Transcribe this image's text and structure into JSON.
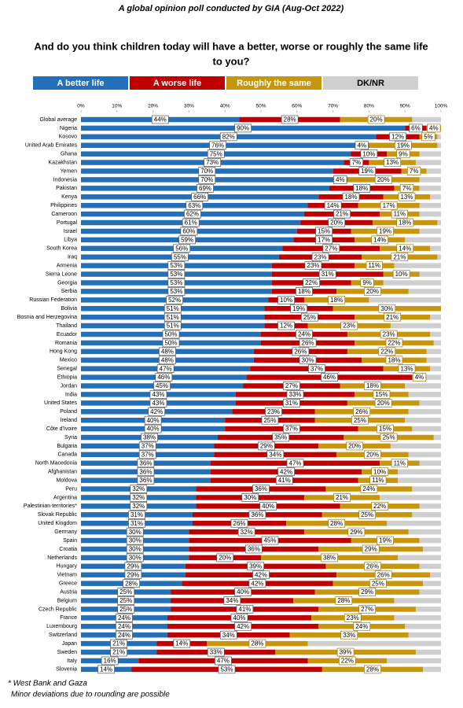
{
  "chart_data": {
    "type": "stacked-bar-horizontal",
    "title": "A global opinion poll conducted by GIA (Aug-Oct 2022)",
    "subtitle": [
      "And do you think children today will have a better, worse or roughly the same life",
      "to you?"
    ],
    "categories": [
      "Global average",
      "Nigeria",
      "Kosovo",
      "United Arab Emirates",
      "Ghana",
      "Kazakhstan",
      "Yemen",
      "Indonesia",
      "Pakistan",
      "Kenya",
      "Philippines",
      "Cameroon",
      "Portugal",
      "Israel",
      "Libya",
      "South Korea",
      "Iraq",
      "Armenia",
      "Sierra Leone",
      "Georgia",
      "Serbia",
      "Russian Federation",
      "Bolivia",
      "Bosnia and Herzegovina",
      "Thailand",
      "Ecuador",
      "Romania",
      "Hong Kong",
      "Mexico",
      "Senegal",
      "Ethiopia",
      "Jordan",
      "India",
      "United States",
      "Poland",
      "Ireland",
      "Côte d'Ivoire",
      "Syria",
      "Bulgaria",
      "Canada",
      "North Macedonia",
      "Afghanistan",
      "Moldova",
      "Peru",
      "Argentina",
      "Palestinian territories*",
      "Slovak Republic",
      "United Kingdom",
      "Germany",
      "Spain",
      "Croatia",
      "Netherlands",
      "Hungary",
      "Vietnam",
      "Greece",
      "Austria",
      "Belgium",
      "Czech Republic",
      "France",
      "Luxembourg",
      "Switzerland",
      "Japan",
      "Sweden",
      "Italy",
      "Slovenia"
    ],
    "series": [
      {
        "name": "A better life",
        "color": "#2470b8",
        "values": [
          44,
          90,
          82,
          76,
          75,
          73,
          70,
          70,
          69,
          66,
          63,
          62,
          61,
          60,
          59,
          56,
          55,
          53,
          53,
          53,
          53,
          52,
          51,
          51,
          51,
          50,
          50,
          48,
          48,
          47,
          46,
          45,
          43,
          43,
          42,
          40,
          40,
          38,
          37,
          37,
          36,
          36,
          36,
          32,
          32,
          32,
          31,
          31,
          30,
          30,
          30,
          30,
          29,
          29,
          28,
          25,
          25,
          25,
          24,
          24,
          24,
          21,
          21,
          16,
          14
        ],
        "value_labels": [
          "44%",
          "90%",
          "82%",
          "76%",
          "75%",
          "73%",
          "70%",
          "70%",
          "69%",
          "66%",
          "63%",
          "62%",
          "61%",
          "60%",
          "59%",
          "56%",
          "55%",
          "53%",
          "53%",
          "53%",
          "53%",
          "52%",
          "51%",
          "51%",
          "51%",
          "50%",
          "50%",
          "48%",
          "48%",
          "47%",
          "46%",
          "45%",
          "43%",
          "43%",
          "42%",
          "40%",
          "40%",
          "38%",
          "37%",
          "37%",
          "36%",
          "36%",
          "36%",
          "32%",
          "32%",
          "32%",
          "31%",
          "31%",
          "30%",
          "30%",
          "30%",
          "30%",
          "29%",
          "29%",
          "28%",
          "25%",
          "25%",
          "25%",
          "24%",
          "24%",
          "24%",
          "21%",
          "21%",
          "16%",
          "14%"
        ]
      },
      {
        "name": "A worse life",
        "color": "#c00000",
        "values": [
          28,
          6,
          12,
          4,
          10,
          7,
          19,
          4,
          18,
          18,
          14,
          21,
          20,
          15,
          17,
          27,
          23,
          23,
          31,
          22,
          18,
          10,
          19,
          25,
          12,
          24,
          26,
          26,
          30,
          37,
          46,
          27,
          33,
          31,
          23,
          25,
          37,
          35,
          29,
          34,
          47,
          42,
          41,
          36,
          30,
          40,
          36,
          26,
          32,
          45,
          36,
          20,
          39,
          42,
          42,
          40,
          34,
          41,
          40,
          42,
          34,
          14,
          33,
          47,
          53
        ],
        "value_labels": [
          "28%",
          "6%",
          "12%",
          "4%",
          "10%",
          "7%",
          "19%",
          "4%",
          "18%",
          "18%",
          "14%",
          "21%",
          "20%",
          "15%",
          "17%",
          "27%",
          "23%",
          "23%",
          "31%",
          "22%",
          "18%",
          "10%",
          "19%",
          "25%",
          "12%",
          "24%",
          "26%",
          "26%",
          "30%",
          "37%",
          "46%",
          "27%",
          "33%",
          "31%",
          "23%",
          "25%",
          "37%",
          "35%",
          "29%",
          "34%",
          "47%",
          "42%",
          "41%",
          "36%",
          "30%",
          "40%",
          "36%",
          "26%",
          "32%",
          "45%",
          "36%",
          "20%",
          "39%",
          "42%",
          "42%",
          "40%",
          "34%",
          "41%",
          "40%",
          "42%",
          "34%",
          "14%",
          "33%",
          "47%",
          "53%"
        ]
      },
      {
        "name": "Roughly the same",
        "color": "#c8960c",
        "values": [
          20,
          4,
          5,
          19,
          9,
          13,
          7,
          20,
          7,
          13,
          17,
          11,
          18,
          19,
          14,
          14,
          21,
          11,
          10,
          9,
          20,
          18,
          30,
          21,
          23,
          23,
          22,
          22,
          18,
          13,
          4,
          18,
          15,
          20,
          26,
          25,
          15,
          25,
          20,
          20,
          11,
          10,
          11,
          24,
          21,
          22,
          25,
          28,
          29,
          19,
          29,
          38,
          26,
          26,
          25,
          29,
          28,
          27,
          23,
          24,
          33,
          28,
          39,
          22,
          28
        ],
        "value_labels": [
          "20%",
          "4%",
          "5%",
          "19%",
          "9%",
          "13%",
          "7%",
          "20%",
          "7%",
          "13%",
          "17%",
          "11%",
          "18%",
          "19%",
          "14%",
          "14%",
          "21%",
          "11%",
          "10%",
          "9%",
          "20%",
          "18%",
          "30%",
          "21%",
          "23%",
          "23%",
          "22%",
          "22%",
          "18%",
          "13%",
          "4%",
          "18%",
          "15%",
          "20%",
          "26%",
          "25%",
          "15%",
          "25%",
          "20%",
          "20%",
          "11%",
          "10%",
          "11%",
          "24%",
          "21%",
          "22%",
          "25%",
          "28%",
          "29%",
          "19%",
          "29%",
          "38%",
          "26%",
          "26%",
          "25%",
          "29%",
          "28%",
          "27%",
          "23%",
          "24%",
          "33%",
          "28%",
          "39%",
          "22%",
          "28%"
        ]
      },
      {
        "name": "DK/NR",
        "color": "#cfcfcf",
        "values": [
          8,
          0,
          1,
          1,
          6,
          7,
          4,
          6,
          6,
          3,
          6,
          6,
          1,
          6,
          10,
          3,
          1,
          13,
          6,
          16,
          9,
          20,
          0,
          3,
          14,
          3,
          2,
          4,
          4,
          3,
          4,
          10,
          9,
          6,
          9,
          10,
          8,
          2,
          14,
          9,
          6,
          12,
          12,
          8,
          17,
          6,
          8,
          15,
          9,
          6,
          5,
          12,
          6,
          3,
          5,
          6,
          13,
          7,
          13,
          10,
          9,
          37,
          7,
          15,
          5
        ]
      }
    ],
    "xlim": [
      0,
      100
    ],
    "xticks": [
      {
        "value": 0,
        "label": "0%"
      },
      {
        "value": 10,
        "label": "10%"
      },
      {
        "value": 20,
        "label": "20%"
      },
      {
        "value": 30,
        "label": "30%"
      },
      {
        "value": 40,
        "label": "40%"
      },
      {
        "value": 50,
        "label": "50%"
      },
      {
        "value": 60,
        "label": "60%"
      },
      {
        "value": 70,
        "label": "70%"
      },
      {
        "value": 80,
        "label": "80%"
      },
      {
        "value": 90,
        "label": "90%"
      },
      {
        "value": 100,
        "label": "100%"
      }
    ],
    "footnotes": [
      "* West Bank and Gaza",
      "Minor deviations due to rounding are possible"
    ]
  }
}
